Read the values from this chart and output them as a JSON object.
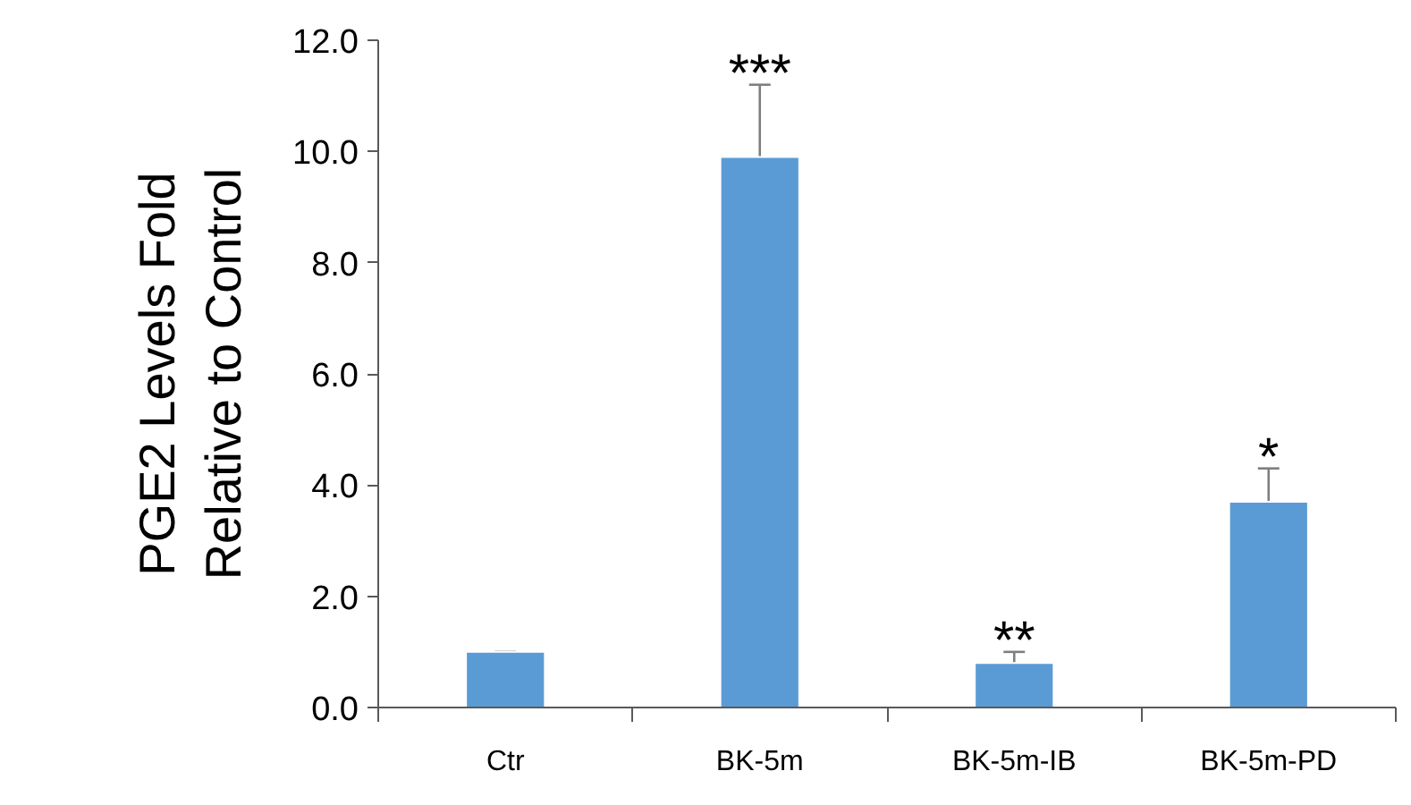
{
  "chart_data": {
    "type": "bar",
    "ylabel": "PGE2 Levels Fold\nRelative to Control",
    "categories": [
      "Ctr",
      "BK-5m",
      "BK-5m-IB",
      "BK-5m-PD"
    ],
    "values": [
      1.0,
      9.9,
      0.8,
      3.7
    ],
    "color": "#5b9bd5",
    "errors": [
      [
        1.0,
        1.0
      ],
      [
        9.9,
        11.2
      ],
      [
        0.8,
        1.0
      ],
      [
        3.7,
        4.3
      ]
    ],
    "ylim": [
      0,
      12
    ],
    "yticks": [
      {
        "value": 0,
        "label": "0.0"
      },
      {
        "value": 2,
        "label": "2.0"
      },
      {
        "value": 4,
        "label": "4.0"
      },
      {
        "value": 6,
        "label": "6.0"
      },
      {
        "value": 8,
        "label": "8.0"
      },
      {
        "value": 10,
        "label": "10.0"
      },
      {
        "value": 12,
        "label": "12.0"
      }
    ],
    "grid": false,
    "annotations": [
      "***",
      "**",
      "*"
    ]
  }
}
